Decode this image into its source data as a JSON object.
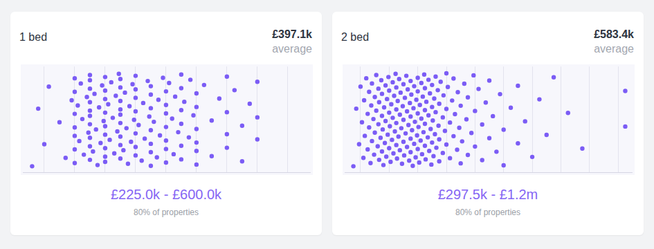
{
  "chart_data": [
    {
      "type": "scatter",
      "title": "1 bed",
      "color": "#7b5cf5",
      "marker": "circle",
      "average": {
        "value": 397100,
        "label": "£397.1k"
      },
      "average_text": "average",
      "range": {
        "low": {
          "value": 225000,
          "label": "£225.0k"
        },
        "separator": "-",
        "high": {
          "value": 600000,
          "label": "£600.0k"
        }
      },
      "range_text": "80% of properties",
      "xlim": [
        30000,
        975000
      ],
      "xticks": [
        100000,
        200000,
        300000,
        400000,
        500000,
        600000,
        700000,
        800000,
        900000
      ],
      "grid": true,
      "tick_labels": false,
      "values": [
        60000,
        80000,
        100000,
        115000,
        150000,
        170000,
        190000,
        200000,
        200000,
        200000,
        200000,
        200000,
        200000,
        200000,
        210000,
        215000,
        220000,
        225000,
        230000,
        240000,
        245000,
        250000,
        250000,
        250000,
        250000,
        250000,
        250000,
        250000,
        250000,
        250000,
        250000,
        260000,
        265000,
        270000,
        275000,
        280000,
        285000,
        290000,
        295000,
        300000,
        300000,
        300000,
        300000,
        300000,
        300000,
        300000,
        300000,
        300000,
        310000,
        315000,
        320000,
        325000,
        330000,
        335000,
        340000,
        345000,
        350000,
        350000,
        350000,
        350000,
        350000,
        350000,
        350000,
        350000,
        350000,
        360000,
        365000,
        370000,
        375000,
        380000,
        385000,
        390000,
        395000,
        400000,
        400000,
        400000,
        400000,
        400000,
        400000,
        400000,
        410000,
        420000,
        425000,
        430000,
        440000,
        445000,
        450000,
        450000,
        450000,
        450000,
        450000,
        450000,
        450000,
        460000,
        470000,
        475000,
        480000,
        490000,
        500000,
        500000,
        500000,
        500000,
        500000,
        500000,
        500000,
        510000,
        520000,
        525000,
        530000,
        540000,
        550000,
        550000,
        550000,
        550000,
        550000,
        550000,
        560000,
        575000,
        580000,
        590000,
        600000,
        600000,
        600000,
        600000,
        600000,
        600000,
        625000,
        650000,
        650000,
        675000,
        700000,
        700000,
        700000,
        700000,
        725000,
        750000,
        750000,
        775000,
        800000,
        800000,
        800000
      ]
    },
    {
      "type": "scatter",
      "title": "2 bed",
      "color": "#7b5cf5",
      "marker": "circle",
      "average": {
        "value": 583400,
        "label": "£583.4k"
      },
      "average_text": "average",
      "range": {
        "low": {
          "value": 297500,
          "label": "£297.5k"
        },
        "separator": "-",
        "high": {
          "value": 1200000,
          "label": "£1.2m"
        }
      },
      "range_text": "80% of properties",
      "xlim": [
        90000,
        2100000
      ],
      "xticks": [
        200000,
        400000,
        600000,
        800000,
        1000000,
        1200000,
        1400000,
        1600000,
        1800000,
        2000000
      ],
      "grid": true,
      "tick_labels": false,
      "values": [
        150000,
        170000,
        190000,
        200000,
        210000,
        220000,
        225000,
        230000,
        240000,
        250000,
        250000,
        260000,
        260000,
        270000,
        275000,
        280000,
        280000,
        290000,
        295000,
        300000,
        300000,
        310000,
        310000,
        320000,
        325000,
        325000,
        330000,
        330000,
        340000,
        345000,
        350000,
        350000,
        350000,
        355000,
        360000,
        365000,
        370000,
        375000,
        375000,
        380000,
        385000,
        390000,
        395000,
        400000,
        400000,
        400000,
        405000,
        410000,
        415000,
        420000,
        425000,
        425000,
        430000,
        435000,
        440000,
        445000,
        450000,
        450000,
        450000,
        450000,
        455000,
        460000,
        465000,
        470000,
        475000,
        475000,
        480000,
        485000,
        490000,
        495000,
        500000,
        500000,
        500000,
        505000,
        510000,
        515000,
        520000,
        525000,
        525000,
        530000,
        535000,
        540000,
        545000,
        550000,
        550000,
        550000,
        550000,
        555000,
        560000,
        565000,
        570000,
        575000,
        575000,
        580000,
        585000,
        590000,
        595000,
        600000,
        600000,
        600000,
        600000,
        605000,
        610000,
        615000,
        620000,
        625000,
        625000,
        630000,
        635000,
        640000,
        645000,
        650000,
        650000,
        650000,
        650000,
        655000,
        660000,
        670000,
        675000,
        675000,
        680000,
        685000,
        690000,
        695000,
        700000,
        700000,
        700000,
        705000,
        710000,
        715000,
        720000,
        725000,
        725000,
        730000,
        740000,
        745000,
        750000,
        750000,
        750000,
        760000,
        775000,
        775000,
        780000,
        790000,
        800000,
        800000,
        800000,
        810000,
        825000,
        825000,
        840000,
        850000,
        850000,
        860000,
        875000,
        880000,
        890000,
        900000,
        900000,
        910000,
        925000,
        940000,
        950000,
        950000,
        975000,
        990000,
        1000000,
        1000000,
        1025000,
        1050000,
        1050000,
        1075000,
        1100000,
        1100000,
        1125000,
        1150000,
        1175000,
        1200000,
        1200000,
        1250000,
        1300000,
        1300000,
        1350000,
        1400000,
        1450000,
        1500000,
        1550000,
        1650000,
        1750000,
        2050000,
        2050000
      ]
    }
  ]
}
